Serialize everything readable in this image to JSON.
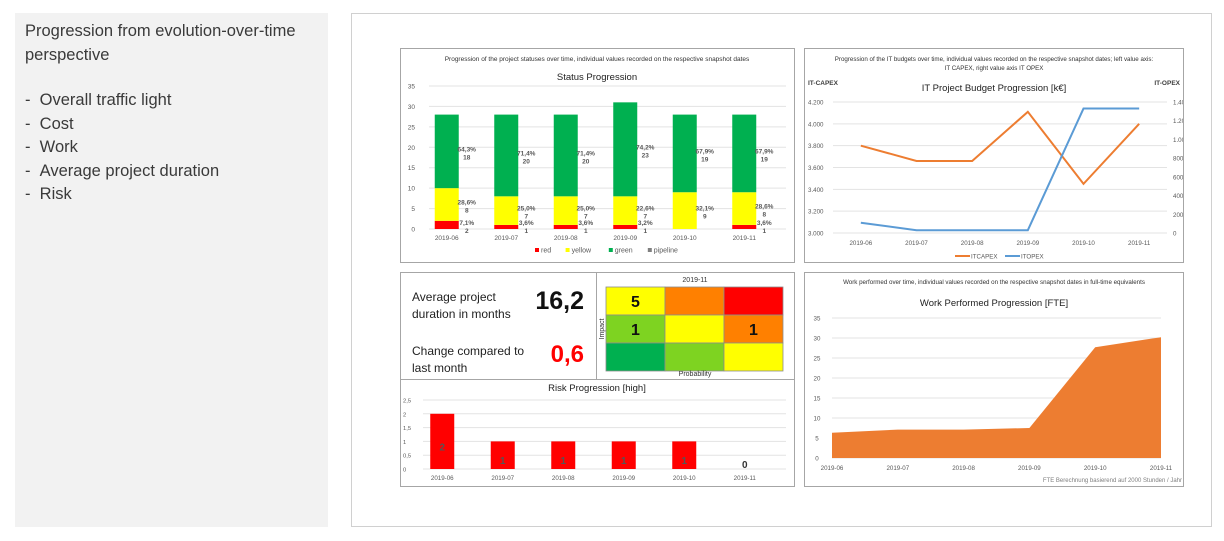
{
  "sidebar": {
    "title": "Progression from evolution-over-time perspective",
    "items": [
      "Overall traffic light",
      "Cost",
      "Work",
      "Average project duration",
      "Risk"
    ]
  },
  "kpi": {
    "duration_label": "Average project duration in months",
    "duration_value": "16,2",
    "change_label": "Change compared to last month",
    "change_value": "0,6",
    "change_color": "#ff0000"
  },
  "colors": {
    "red": "#ff0000",
    "yellow": "#ffff00",
    "green": "#00b050",
    "pipeline": "#808080",
    "capex": "#ed7d31",
    "opex": "#5b9bd5",
    "area": "#ed7d31",
    "matrix_orange": "#ff8000",
    "matrix_lightgreen": "#7ed321"
  },
  "chart_data": [
    {
      "id": "status",
      "type": "bar",
      "stacked": true,
      "caption": "Progression of the project statuses over time, individual values recorded on the respective snapshot dates",
      "title": "Status Progression",
      "categories": [
        "2019-06",
        "2019-07",
        "2019-08",
        "2019-09",
        "2019-10",
        "2019-11"
      ],
      "series": [
        {
          "name": "red",
          "values": [
            2,
            1,
            1,
            1,
            0,
            1
          ],
          "labels": [
            "7,1%",
            "3,6%",
            "3,6%",
            "3,2%",
            "",
            "3,6%"
          ]
        },
        {
          "name": "yellow",
          "values": [
            8,
            7,
            7,
            7,
            9,
            8
          ],
          "labels": [
            "28,6%",
            "25,0%",
            "25,0%",
            "22,6%",
            "32,1%",
            "28,6%"
          ]
        },
        {
          "name": "green",
          "values": [
            18,
            20,
            20,
            23,
            19,
            19
          ],
          "labels": [
            "64,3%",
            "71,4%",
            "71,4%",
            "74,2%",
            "67,9%",
            "67,9%"
          ]
        },
        {
          "name": "pipeline",
          "values": [
            0,
            0,
            0,
            0,
            0,
            0
          ],
          "labels": [
            "",
            "",
            "",
            "",
            "",
            ""
          ]
        }
      ],
      "yticks": [
        "0",
        "5",
        "10",
        "15",
        "20",
        "25",
        "30",
        "35"
      ],
      "ylim": [
        0,
        35
      ],
      "grid": true,
      "legend": "bottom"
    },
    {
      "id": "budget",
      "type": "line",
      "caption": "Progression of the IT budgets over time, individual values recorded on the respective snapshot dates; left value axis: IT CAPEX, right value axis IT OPEX",
      "title": "IT Project Budget Progression [k€]",
      "ylabel_left": "IT-CAPEX",
      "ylabel_right": "IT-OPEX",
      "categories": [
        "2019-06",
        "2019-07",
        "2019-08",
        "2019-09",
        "2019-10",
        "2019-11"
      ],
      "series": [
        {
          "name": "ITCAPEX",
          "axis": "left",
          "values": [
            3800,
            3660,
            3660,
            4110,
            3450,
            4000
          ]
        },
        {
          "name": "ITOPEX",
          "axis": "right",
          "values": [
            110,
            30,
            30,
            30,
            1330,
            1330
          ]
        }
      ],
      "yticks_left": [
        "3.000",
        "3.200",
        "3.400",
        "3.600",
        "3.800",
        "4.000",
        "4.200"
      ],
      "ylim_left": [
        3000,
        4200
      ],
      "yticks_right": [
        "0",
        "200",
        "400",
        "600",
        "800",
        "1.000",
        "1.200",
        "1.400"
      ],
      "ylim_right": [
        0,
        1400
      ],
      "grid": true,
      "legend": "bottom"
    },
    {
      "id": "risk",
      "type": "bar",
      "title": "Risk Progression [high]",
      "categories": [
        "2019-06",
        "2019-07",
        "2019-08",
        "2019-09",
        "2019-10",
        "2019-11"
      ],
      "values": [
        2,
        1,
        1,
        1,
        1,
        0
      ],
      "labels": [
        "2",
        "1",
        "1",
        "1",
        "1",
        "0"
      ],
      "yticks": [
        "0",
        "0,5",
        "1",
        "1,5",
        "2",
        "2,5"
      ],
      "ylim": [
        0,
        2.5
      ],
      "grid": true
    },
    {
      "id": "work",
      "type": "area",
      "caption": "Work performed over time, individual values recorded on the respective snapshot dates in full-time equivalents",
      "title": "Work Performed Progression [FTE]",
      "categories": [
        "2019-06",
        "2019-07",
        "2019-08",
        "2019-09",
        "2019-10",
        "2019-11"
      ],
      "values": [
        6.3,
        7.1,
        7.1,
        7.5,
        27.7,
        30.2
      ],
      "yticks": [
        "0",
        "5",
        "10",
        "15",
        "20",
        "25",
        "30",
        "35"
      ],
      "ylim": [
        0,
        35
      ],
      "grid": true,
      "footnote": "FTE Berechnung basierend auf 2000 Stunden / Jahr"
    },
    {
      "id": "risk_matrix",
      "type": "heatmap",
      "title": "2019-11",
      "xlabel": "Probability",
      "ylabel": "Impact",
      "rows": [
        {
          "colors": [
            "#ffff00",
            "#ff8000",
            "#ff0000"
          ],
          "values": [
            "5",
            "",
            ""
          ]
        },
        {
          "colors": [
            "#7ed321",
            "#ffff00",
            "#ff8000"
          ],
          "values": [
            "1",
            "",
            "1"
          ]
        },
        {
          "colors": [
            "#00b050",
            "#7ed321",
            "#ffff00"
          ],
          "values": [
            "",
            "",
            ""
          ]
        }
      ]
    }
  ]
}
